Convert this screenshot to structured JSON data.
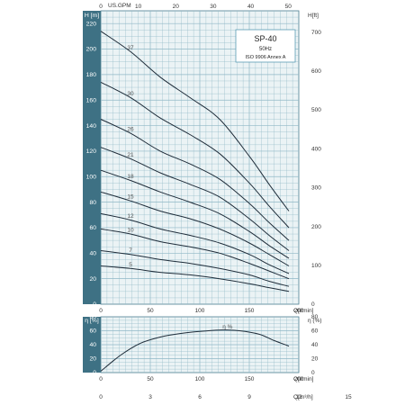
{
  "chart_data": [
    {
      "type": "line",
      "title": "SP-40",
      "subtitle": "50Hz",
      "note": "ISO 9906 Annex A",
      "ylabel_left": "H [m]",
      "ylabel_right": "H[ft]",
      "xlabel_bottom": "Q[l/min]",
      "xlabel_top": "US.GPM",
      "xlim": [
        0,
        200
      ],
      "ylim": [
        0,
        230
      ],
      "grid": true,
      "x_ticks_bottom": [
        "0",
        "50",
        "100",
        "150",
        "200"
      ],
      "x_ticks_top": [
        "0",
        "10",
        "20",
        "30",
        "40",
        "50"
      ],
      "y_ticks_left": [
        "0",
        "20",
        "40",
        "60",
        "80",
        "100",
        "120",
        "140",
        "160",
        "180",
        "200",
        "220"
      ],
      "y_ticks_right": [
        "0",
        "100",
        "200",
        "300",
        "400",
        "500",
        "600",
        "700"
      ],
      "series": [
        {
          "name": "37",
          "x": [
            0,
            30,
            60,
            90,
            120,
            150,
            170,
            190
          ],
          "y": [
            214,
            198,
            178,
            162,
            145,
            116,
            94,
            73
          ]
        },
        {
          "name": "30",
          "x": [
            0,
            30,
            60,
            90,
            120,
            150,
            170,
            190
          ],
          "y": [
            174,
            162,
            146,
            133,
            118,
            95,
            77,
            60
          ]
        },
        {
          "name": "26",
          "x": [
            0,
            30,
            60,
            90,
            120,
            150,
            170,
            190
          ],
          "y": [
            145,
            134,
            120,
            110,
            98,
            79,
            64,
            50
          ]
        },
        {
          "name": "21",
          "x": [
            0,
            30,
            60,
            90,
            120,
            150,
            170,
            190
          ],
          "y": [
            123,
            114,
            103,
            94,
            84,
            67,
            54,
            42
          ]
        },
        {
          "name": "18",
          "x": [
            0,
            30,
            60,
            90,
            120,
            150,
            170,
            190
          ],
          "y": [
            105,
            97,
            88,
            80,
            71,
            57,
            46,
            36
          ]
        },
        {
          "name": "15",
          "x": [
            0,
            30,
            60,
            90,
            120,
            150,
            170,
            190
          ],
          "y": [
            88,
            81,
            73,
            67,
            59,
            48,
            39,
            30
          ]
        },
        {
          "name": "12",
          "x": [
            0,
            30,
            60,
            90,
            120,
            150,
            170,
            190
          ],
          "y": [
            71,
            66,
            59,
            54,
            48,
            39,
            31,
            24
          ]
        },
        {
          "name": "10",
          "x": [
            0,
            30,
            60,
            90,
            120,
            150,
            170,
            190
          ],
          "y": [
            59,
            55,
            49,
            45,
            40,
            32,
            26,
            20
          ]
        },
        {
          "name": "7",
          "x": [
            0,
            30,
            60,
            90,
            120,
            150,
            170,
            190
          ],
          "y": [
            42,
            39,
            35,
            32,
            28,
            23,
            18,
            14
          ]
        },
        {
          "name": "5",
          "x": [
            0,
            30,
            60,
            90,
            120,
            150,
            170,
            190
          ],
          "y": [
            30,
            28,
            25,
            23,
            20,
            16,
            13,
            10
          ]
        }
      ]
    },
    {
      "type": "line",
      "ylabel_left": "η [%]",
      "ylabel_right": "η (%)",
      "xlabel_bottom": "Q[l/min]",
      "xlabel_bottom2": "Q[m³/h]",
      "xlim": [
        0,
        200
      ],
      "ylim": [
        0,
        80
      ],
      "grid": true,
      "x_ticks_bottom": [
        "0",
        "50",
        "100",
        "150",
        "200"
      ],
      "x_ticks_m3h": [
        "0",
        "3",
        "6",
        "9",
        "12",
        "15"
      ],
      "y_ticks": [
        "0",
        "20",
        "40",
        "60",
        "80"
      ],
      "series": [
        {
          "name": "η %",
          "x": [
            0,
            20,
            40,
            60,
            80,
            100,
            120,
            140,
            160,
            175,
            190
          ],
          "y": [
            2,
            25,
            42,
            51,
            56,
            59,
            61,
            60,
            55,
            46,
            38
          ]
        }
      ]
    }
  ],
  "colors": {
    "sidebar": "#3e7184",
    "plot_bg": "#ebf3f5",
    "grid": "#8fb7c6",
    "curve": "#1f2d3a",
    "curve_label": "#2f7fa0",
    "legend_border": "#5a9cb5"
  }
}
